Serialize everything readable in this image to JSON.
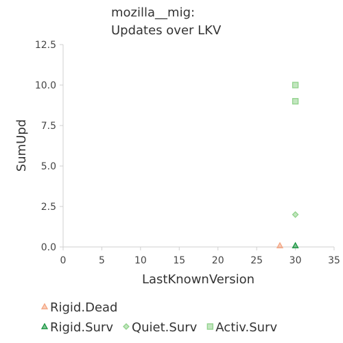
{
  "chart_data": {
    "type": "scatter",
    "title": "mozilla__mig:",
    "subtitle": "Updates over LKV",
    "xlabel": "LastKnownVersion",
    "ylabel": "SumUpd",
    "xlim": [
      0,
      35
    ],
    "ylim": [
      0,
      12.5
    ],
    "xticks": [
      0,
      5,
      10,
      15,
      20,
      25,
      30,
      35
    ],
    "yticks": [
      0.0,
      2.5,
      5.0,
      7.5,
      10.0,
      12.5
    ],
    "xtick_labels": [
      "0",
      "5",
      "10",
      "15",
      "20",
      "25",
      "30",
      "35"
    ],
    "ytick_labels": [
      "0.0",
      "2.5",
      "5.0",
      "7.5",
      "10.0",
      "12.5"
    ],
    "grid": false,
    "legend_position": "bottom",
    "series": [
      {
        "name": "Rigid.Dead",
        "marker": "triangle",
        "color": "#f4a582",
        "points": [
          {
            "x": 28,
            "y": 0
          }
        ]
      },
      {
        "name": "Rigid.Surv",
        "marker": "triangle",
        "color": "#1a9641",
        "points": [
          {
            "x": 30,
            "y": 0
          }
        ]
      },
      {
        "name": "Quiet.Surv",
        "marker": "diamond",
        "color": "#8fd18a",
        "points": [
          {
            "x": 30,
            "y": 2
          }
        ]
      },
      {
        "name": "Activ.Surv",
        "marker": "square",
        "color": "#8fd18a",
        "points": [
          {
            "x": 30,
            "y": 10
          },
          {
            "x": 30,
            "y": 9
          }
        ]
      }
    ]
  }
}
